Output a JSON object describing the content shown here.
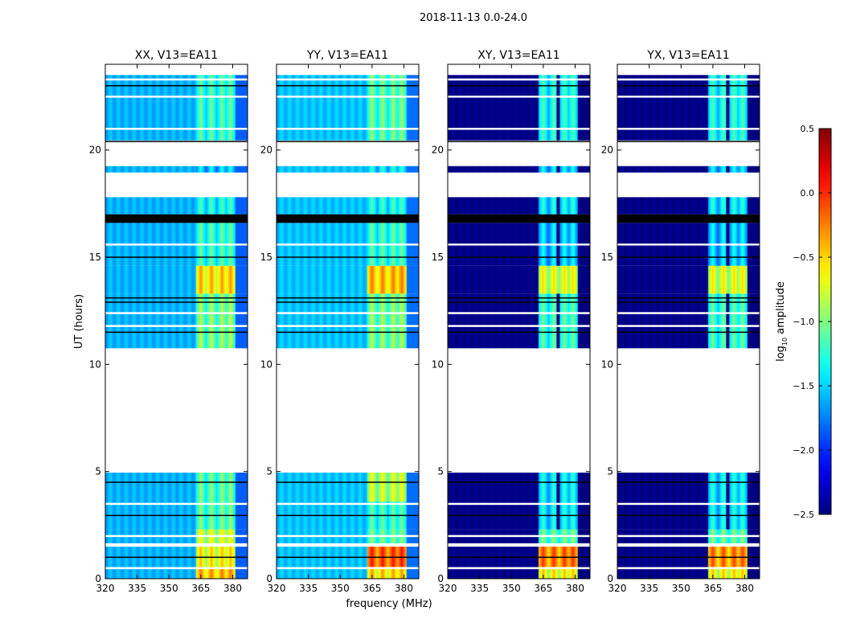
{
  "chart_data": {
    "type": "heatmap",
    "title": "2018-11-13 0.0-24.0",
    "xlabel": "frequency (MHz)",
    "ylabel": "UT (hours)",
    "xlim": [
      320,
      387
    ],
    "ylim": [
      0,
      24
    ],
    "xticks": [
      "320",
      "335",
      "350",
      "365",
      "380"
    ],
    "yticks": [
      "0",
      "5",
      "10",
      "15",
      "20"
    ],
    "hot_channels_mhz": [
      365,
      370,
      375,
      379
    ],
    "hot_band_mhz": [
      363,
      381
    ],
    "colorbar": {
      "label_main": "log",
      "label_sub": "10",
      "label_rest": " amplitude",
      "range": [
        -2.5,
        0.5
      ],
      "ticks": [
        "0.5",
        "0.0",
        "−0.5",
        "−1.0",
        "−1.5",
        "−2.0",
        "−2.5"
      ],
      "colormap": "jet"
    },
    "black_lines_ut": [
      1.0,
      2.95,
      4.5,
      11.5,
      12.9,
      13.1,
      15.0,
      20.4,
      23.0
    ],
    "black_band_ut": [
      16.6,
      17.0
    ],
    "white_lines_ut": [
      0.5,
      1.55,
      2.0,
      3.5,
      11.8,
      12.4,
      15.6,
      21.0,
      22.5,
      23.3
    ],
    "panels": [
      {
        "title": "XX, V13=EA11",
        "base": -1.6,
        "blocks": [
          [
            0,
            0.55,
            -0.2
          ],
          [
            0.55,
            1.5,
            -0.4
          ],
          [
            1.65,
            2.3,
            -0.55
          ],
          [
            2.3,
            4.95,
            -0.9
          ],
          [
            10.75,
            13.3,
            -0.8
          ],
          [
            13.3,
            14.6,
            -0.3
          ],
          [
            14.6,
            16.6,
            -1.0
          ],
          [
            17.0,
            17.8,
            -1.1
          ],
          [
            18.95,
            19.25,
            -1.3
          ],
          [
            20.45,
            23.5,
            -1.0
          ]
        ]
      },
      {
        "title": "YY, V13=EA11",
        "base": -1.55,
        "blocks": [
          [
            0,
            0.55,
            -0.3
          ],
          [
            0.55,
            1.5,
            0.1
          ],
          [
            1.65,
            2.3,
            -0.9
          ],
          [
            2.3,
            3.6,
            -1.0
          ],
          [
            3.6,
            4.95,
            -0.6
          ],
          [
            10.75,
            13.3,
            -0.8
          ],
          [
            13.3,
            14.6,
            -0.2
          ],
          [
            14.6,
            16.6,
            -1.0
          ],
          [
            17.0,
            17.8,
            -1.1
          ],
          [
            18.95,
            19.25,
            -1.2
          ],
          [
            20.45,
            23.5,
            -0.9
          ]
        ]
      },
      {
        "title": "XY, V13=EA11",
        "base": -2.5,
        "blocks": [
          [
            0,
            0.55,
            -0.4
          ],
          [
            0.55,
            1.5,
            0.0
          ],
          [
            1.65,
            2.3,
            -0.9
          ],
          [
            2.3,
            4.95,
            -1.2
          ],
          [
            10.75,
            13.3,
            -1.0
          ],
          [
            13.3,
            14.6,
            -0.5
          ],
          [
            14.6,
            16.6,
            -1.3
          ],
          [
            17.0,
            17.8,
            -1.2
          ],
          [
            18.95,
            19.25,
            -1.3
          ],
          [
            20.45,
            23.5,
            -1.1
          ]
        ]
      },
      {
        "title": "YX, V13=EA11",
        "base": -2.5,
        "blocks": [
          [
            0,
            0.55,
            -0.4
          ],
          [
            0.55,
            1.5,
            -0.05
          ],
          [
            1.65,
            2.3,
            -0.9
          ],
          [
            2.3,
            4.95,
            -1.2
          ],
          [
            10.75,
            13.3,
            -1.0
          ],
          [
            13.3,
            14.6,
            -0.5
          ],
          [
            14.6,
            16.6,
            -1.3
          ],
          [
            17.0,
            17.8,
            -1.2
          ],
          [
            18.95,
            19.25,
            -1.3
          ],
          [
            20.45,
            23.5,
            -1.1
          ]
        ]
      }
    ]
  }
}
